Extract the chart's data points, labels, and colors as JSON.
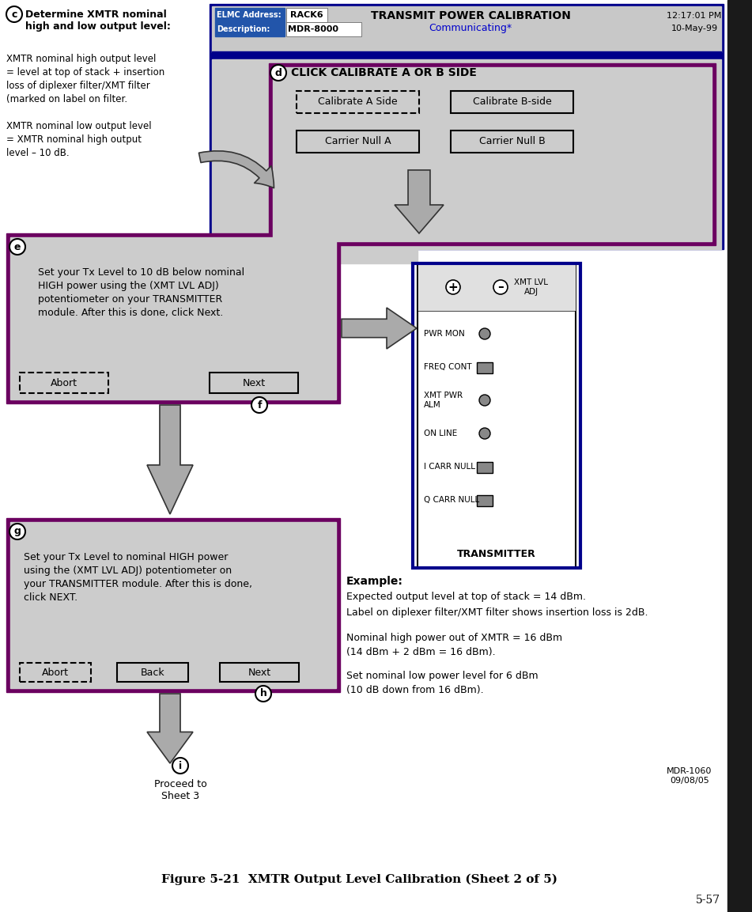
{
  "bg_color": "#ffffff",
  "purple": "#6b0060",
  "dark_blue": "#00008b",
  "gray_box": "#c8c8c8",
  "figure_title": "Figure 5-21  XMTR Output Level Calibration (Sheet 2 of 5)",
  "page_num": "5-57",
  "header_title": "TRANSMIT POWER CALIBRATION",
  "header_comm": "Communicating*",
  "header_time": "12:17:01 PM",
  "header_date": "10-May-99",
  "header_elmc": "ELMC Address:",
  "header_rack": "RACK6",
  "header_desc": "Description:",
  "header_mdr": "MDR-8000",
  "click_label": "CLICK CALIBRATE A OR B SIDE",
  "btn_cal_a": "Calibrate A Side",
  "btn_cal_b": "Calibrate B-side",
  "btn_null_a": "Carrier Null A",
  "btn_null_b": "Carrier Null B",
  "step_e_text": "Set your Tx Level to 10 dB below nominal\nHIGH power using the (XMT LVL ADJ)\npotentiometer on your TRANSMITTER\nmodule. After this is done, click Next.",
  "step_g_text": "Set your Tx Level to nominal HIGH power\nusing the (XMT LVL ADJ) potentiometer on\nyour TRANSMITTER module. After this is done,\nclick NEXT.",
  "example_title": "Example:",
  "example_line1": "Expected output level at top of stack = 14 dBm.",
  "example_line2": "Label on diplexer filter/XMT filter shows insertion loss is 2dB.",
  "example_line3": "Nominal high power out of XMTR = 16 dBm",
  "example_line4": "(14 dBm + 2 dBm = 16 dBm).",
  "example_line5": "Set nominal low power level for 6 dBm",
  "example_line6": "(10 dB down from 16 dBm).",
  "left_text_c_bold": "Determine XMTR nominal\nhigh and low output level:",
  "left_text_body": "XMTR nominal high output level\n= level at top of stack + insertion\nloss of diplexer filter/XMT filter\n(marked on label on filter.\n\nXMTR nominal low output level\n= XMTR nominal high output\nlevel – 10 dB.",
  "mdr_bottom": "MDR-1060\n09/08/05",
  "proceed_text": "Proceed to\nSheet 3",
  "transmitter_label": "TRANSMITTER",
  "xmt_lvl_adj": "XMT LVL\nADJ",
  "pwr_mon": "PWR MON",
  "freq_cont": "FREQ CONT",
  "xmt_pwr_alm": "XMT PWR\nALM",
  "on_line": "ON LINE",
  "i_carr_null": "I CARR NULL",
  "q_carr_null": "Q CARR NULL"
}
